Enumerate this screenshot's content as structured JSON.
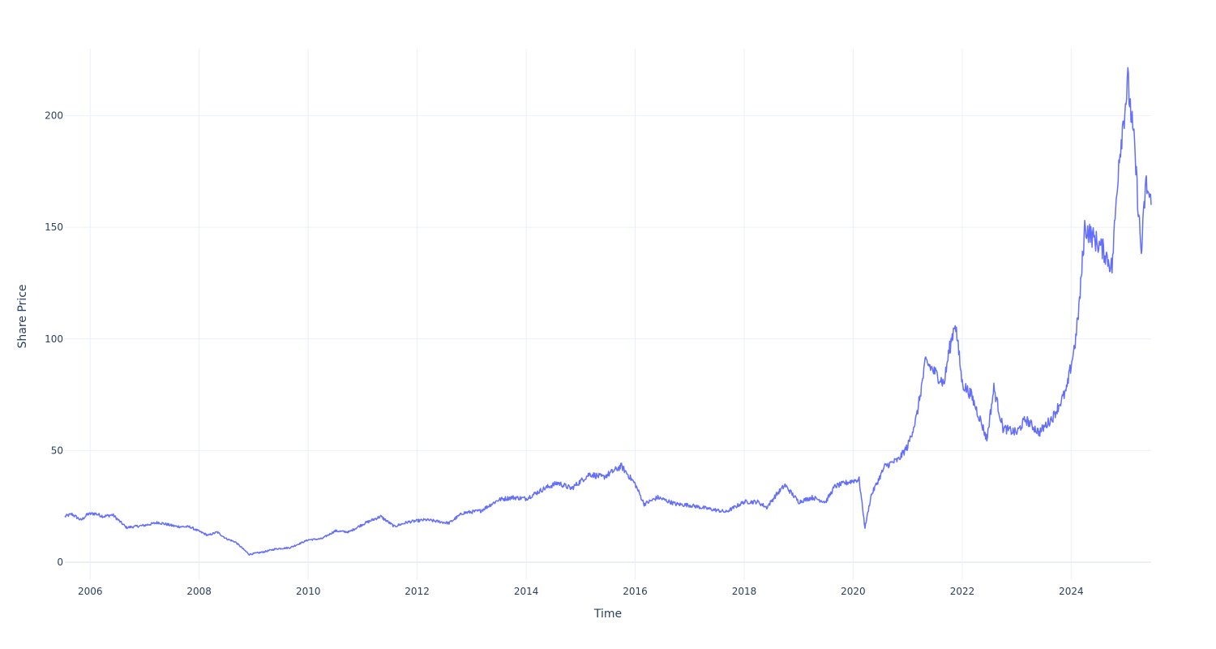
{
  "chart_data": {
    "type": "line",
    "xlabel": "Time",
    "ylabel": "Share Price",
    "xlim": [
      "2005-07-15",
      "2025-06-20"
    ],
    "ylim": [
      -8,
      230
    ],
    "x_ticks": [
      {
        "date": "2006-01-01",
        "label": "2006"
      },
      {
        "date": "2008-01-01",
        "label": "2008"
      },
      {
        "date": "2010-01-01",
        "label": "2010"
      },
      {
        "date": "2012-01-01",
        "label": "2012"
      },
      {
        "date": "2014-01-01",
        "label": "2014"
      },
      {
        "date": "2016-01-01",
        "label": "2016"
      },
      {
        "date": "2018-01-01",
        "label": "2018"
      },
      {
        "date": "2020-01-01",
        "label": "2020"
      },
      {
        "date": "2022-01-01",
        "label": "2022"
      },
      {
        "date": "2024-01-01",
        "label": "2024"
      }
    ],
    "y_ticks": [
      {
        "value": 0,
        "label": "0"
      },
      {
        "value": 50,
        "label": "50"
      },
      {
        "value": 100,
        "label": "100"
      },
      {
        "value": 150,
        "label": "150"
      },
      {
        "value": 200,
        "label": "200"
      }
    ],
    "grid": true,
    "line_color": "#636efa",
    "series": [
      {
        "points": [
          [
            "2005-07-15",
            20.5
          ],
          [
            "2005-09-01",
            21.5
          ],
          [
            "2005-11-01",
            18.8
          ],
          [
            "2005-12-15",
            21.5
          ],
          [
            "2006-02-01",
            21.8
          ],
          [
            "2006-04-01",
            20.5
          ],
          [
            "2006-06-01",
            21.2
          ],
          [
            "2006-09-01",
            15.5
          ],
          [
            "2007-01-01",
            16.5
          ],
          [
            "2007-04-01",
            17.8
          ],
          [
            "2007-08-01",
            16.0
          ],
          [
            "2007-11-01",
            15.8
          ],
          [
            "2008-01-01",
            13.8
          ],
          [
            "2008-03-01",
            12.0
          ],
          [
            "2008-05-01",
            13.5
          ],
          [
            "2008-07-01",
            10.5
          ],
          [
            "2008-09-01",
            9.0
          ],
          [
            "2008-12-01",
            3.5
          ],
          [
            "2009-03-01",
            4.5
          ],
          [
            "2009-06-01",
            6.0
          ],
          [
            "2009-09-01",
            6.5
          ],
          [
            "2010-01-01",
            10.0
          ],
          [
            "2010-04-01",
            10.5
          ],
          [
            "2010-07-01",
            14.0
          ],
          [
            "2010-10-01",
            13.5
          ],
          [
            "2011-01-01",
            17.0
          ],
          [
            "2011-05-01",
            20.5
          ],
          [
            "2011-08-01",
            16.0
          ],
          [
            "2011-11-01",
            18.0
          ],
          [
            "2012-03-01",
            19.0
          ],
          [
            "2012-08-01",
            17.5
          ],
          [
            "2012-11-01",
            22.0
          ],
          [
            "2013-03-01",
            23.0
          ],
          [
            "2013-07-01",
            28.0
          ],
          [
            "2013-10-01",
            29.0
          ],
          [
            "2014-01-01",
            28.5
          ],
          [
            "2014-05-01",
            33.0
          ],
          [
            "2014-08-01",
            35.5
          ],
          [
            "2014-11-01",
            33.0
          ],
          [
            "2015-03-01",
            39.5
          ],
          [
            "2015-06-01",
            38.0
          ],
          [
            "2015-10-01",
            43.0
          ],
          [
            "2016-01-01",
            35.0
          ],
          [
            "2016-03-01",
            26.0
          ],
          [
            "2016-06-01",
            29.0
          ],
          [
            "2016-10-01",
            26.0
          ],
          [
            "2017-01-01",
            25.5
          ],
          [
            "2017-05-01",
            24.0
          ],
          [
            "2017-09-01",
            22.5
          ],
          [
            "2018-01-01",
            27.0
          ],
          [
            "2018-04-01",
            27.0
          ],
          [
            "2018-06-01",
            24.5
          ],
          [
            "2018-08-01",
            30.0
          ],
          [
            "2018-10-01",
            34.5
          ],
          [
            "2019-01-01",
            27.0
          ],
          [
            "2019-04-01",
            29.0
          ],
          [
            "2019-07-01",
            27.0
          ],
          [
            "2019-09-01",
            34.0
          ],
          [
            "2020-01-01",
            36.5
          ],
          [
            "2020-02-10",
            37.0
          ],
          [
            "2020-03-20",
            15.5
          ],
          [
            "2020-05-01",
            30.0
          ],
          [
            "2020-08-01",
            43.0
          ],
          [
            "2020-11-01",
            46.0
          ],
          [
            "2021-01-01",
            52.0
          ],
          [
            "2021-03-01",
            65.0
          ],
          [
            "2021-05-01",
            90.0
          ],
          [
            "2021-07-01",
            85.0
          ],
          [
            "2021-09-01",
            80.0
          ],
          [
            "2021-10-01",
            93.0
          ],
          [
            "2021-11-15",
            108.0
          ],
          [
            "2022-01-01",
            80.0
          ],
          [
            "2022-03-01",
            75.0
          ],
          [
            "2022-05-01",
            64.0
          ],
          [
            "2022-06-15",
            55.0
          ],
          [
            "2022-08-01",
            78.0
          ],
          [
            "2022-10-01",
            60.0
          ],
          [
            "2023-01-01",
            58.0
          ],
          [
            "2023-03-01",
            64.0
          ],
          [
            "2023-06-01",
            58.0
          ],
          [
            "2023-09-01",
            65.0
          ],
          [
            "2023-12-01",
            77.0
          ],
          [
            "2024-02-01",
            100.0
          ],
          [
            "2024-03-01",
            120.0
          ],
          [
            "2024-04-01",
            150.0
          ],
          [
            "2024-06-01",
            145.0
          ],
          [
            "2024-08-01",
            140.0
          ],
          [
            "2024-10-01",
            132.0
          ],
          [
            "2024-11-15",
            180.0
          ],
          [
            "2025-01-15",
            215.0
          ],
          [
            "2025-03-01",
            185.0
          ],
          [
            "2025-04-15",
            138.0
          ],
          [
            "2025-05-15",
            170.0
          ],
          [
            "2025-06-20",
            160.0
          ]
        ]
      }
    ]
  }
}
